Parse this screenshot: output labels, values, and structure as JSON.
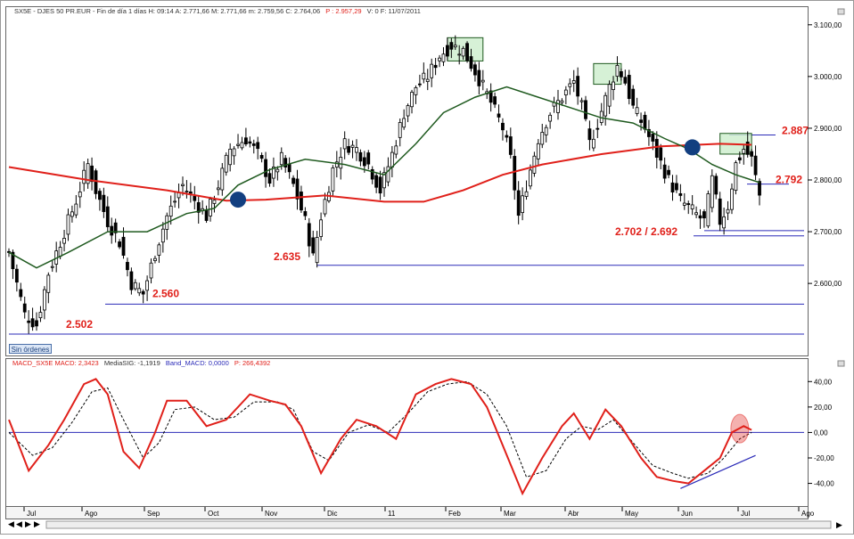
{
  "price_panel": {
    "header": "SX5E - DJES 50 PR.EUR - Fin de día 1 días  H: 09:14  A: 2.771,66  M: 2.771,66  m: 2.759,56  C: 2.764,06",
    "header_p": "P : 2.957,29",
    "header_tail": "V: 0  F: 11/07/2011",
    "orders_button": "Sin órdenes"
  },
  "macd_panel": {
    "header_macd": "MACD_SX5E  MACD: 2,3423",
    "header_sig": "MediaSIG: -1,1919",
    "header_band": "Band_MACD: 0,0000",
    "header_p": "P: 266,4392"
  },
  "colors": {
    "price": "#000000",
    "ma_long": "#e0201a",
    "ma_short": "#1f5a1f",
    "support": "#2b2bb8",
    "annotation": "#e0201a",
    "macd": "#e0201a",
    "signal": "#000000",
    "zero": "#2b2bb8",
    "circle": "#123f80",
    "box_fill": "#cfeecf",
    "box_stroke": "#1f5a1f"
  },
  "chart_data": [
    {
      "type": "candlestick",
      "ylim": [
        2490,
        3110
      ],
      "y_ticks": [
        "3.100,00",
        "3.000,00",
        "2.900,00",
        "2.800,00",
        "2.700,00",
        "2.600,00"
      ],
      "x_labels": [
        "Jul",
        "Ago",
        "Sep",
        "Oct",
        "Nov",
        "Dic",
        "11",
        "Feb",
        "Mar",
        "Abr",
        "May",
        "Jun",
        "Jul",
        "Ago"
      ],
      "price_path": [
        {
          "x": 0,
          "y": 2660
        },
        {
          "x": 4,
          "y": 2540
        },
        {
          "x": 7,
          "y": 2520
        },
        {
          "x": 10,
          "y": 2620
        },
        {
          "x": 14,
          "y": 2700
        },
        {
          "x": 17,
          "y": 2760
        },
        {
          "x": 20,
          "y": 2830
        },
        {
          "x": 22,
          "y": 2780
        },
        {
          "x": 25,
          "y": 2720
        },
        {
          "x": 28,
          "y": 2680
        },
        {
          "x": 31,
          "y": 2600
        },
        {
          "x": 34,
          "y": 2580
        },
        {
          "x": 37,
          "y": 2660
        },
        {
          "x": 40,
          "y": 2730
        },
        {
          "x": 44,
          "y": 2790
        },
        {
          "x": 47,
          "y": 2760
        },
        {
          "x": 50,
          "y": 2730
        },
        {
          "x": 53,
          "y": 2790
        },
        {
          "x": 56,
          "y": 2860
        },
        {
          "x": 60,
          "y": 2880
        },
        {
          "x": 63,
          "y": 2850
        },
        {
          "x": 66,
          "y": 2800
        },
        {
          "x": 69,
          "y": 2840
        },
        {
          "x": 72,
          "y": 2790
        },
        {
          "x": 75,
          "y": 2720
        },
        {
          "x": 77,
          "y": 2650
        },
        {
          "x": 79,
          "y": 2730
        },
        {
          "x": 82,
          "y": 2820
        },
        {
          "x": 85,
          "y": 2870
        },
        {
          "x": 88,
          "y": 2860
        },
        {
          "x": 91,
          "y": 2830
        },
        {
          "x": 94,
          "y": 2780
        },
        {
          "x": 97,
          "y": 2850
        },
        {
          "x": 100,
          "y": 2930
        },
        {
          "x": 103,
          "y": 2980
        },
        {
          "x": 106,
          "y": 3000
        },
        {
          "x": 109,
          "y": 3040
        },
        {
          "x": 112,
          "y": 3060
        },
        {
          "x": 115,
          "y": 3050
        },
        {
          "x": 118,
          "y": 3010
        },
        {
          "x": 120,
          "y": 2980
        },
        {
          "x": 122,
          "y": 2950
        },
        {
          "x": 125,
          "y": 2900
        },
        {
          "x": 127,
          "y": 2840
        },
        {
          "x": 129,
          "y": 2730
        },
        {
          "x": 131,
          "y": 2790
        },
        {
          "x": 134,
          "y": 2880
        },
        {
          "x": 137,
          "y": 2930
        },
        {
          "x": 140,
          "y": 2960
        },
        {
          "x": 143,
          "y": 2990
        },
        {
          "x": 145,
          "y": 2940
        },
        {
          "x": 147,
          "y": 2870
        },
        {
          "x": 149,
          "y": 2910
        },
        {
          "x": 152,
          "y": 2980
        },
        {
          "x": 154,
          "y": 3020
        },
        {
          "x": 156,
          "y": 2990
        },
        {
          "x": 158,
          "y": 2940
        },
        {
          "x": 161,
          "y": 2900
        },
        {
          "x": 164,
          "y": 2850
        },
        {
          "x": 167,
          "y": 2800
        },
        {
          "x": 170,
          "y": 2760
        },
        {
          "x": 173,
          "y": 2740
        },
        {
          "x": 176,
          "y": 2720
        },
        {
          "x": 178,
          "y": 2800
        },
        {
          "x": 180,
          "y": 2720
        },
        {
          "x": 182,
          "y": 2750
        },
        {
          "x": 184,
          "y": 2830
        },
        {
          "x": 186,
          "y": 2860
        },
        {
          "x": 188,
          "y": 2840
        },
        {
          "x": 190,
          "y": 2770
        }
      ],
      "ma_long": [
        {
          "x": 0,
          "y": 2825
        },
        {
          "x": 20,
          "y": 2800
        },
        {
          "x": 40,
          "y": 2780
        },
        {
          "x": 55,
          "y": 2760
        },
        {
          "x": 65,
          "y": 2762
        },
        {
          "x": 80,
          "y": 2770
        },
        {
          "x": 95,
          "y": 2758
        },
        {
          "x": 105,
          "y": 2758
        },
        {
          "x": 115,
          "y": 2780
        },
        {
          "x": 125,
          "y": 2810
        },
        {
          "x": 135,
          "y": 2830
        },
        {
          "x": 150,
          "y": 2850
        },
        {
          "x": 165,
          "y": 2865
        },
        {
          "x": 180,
          "y": 2870
        },
        {
          "x": 188,
          "y": 2868
        }
      ],
      "ma_short": [
        {
          "x": 0,
          "y": 2660
        },
        {
          "x": 7,
          "y": 2630
        },
        {
          "x": 15,
          "y": 2660
        },
        {
          "x": 25,
          "y": 2700
        },
        {
          "x": 35,
          "y": 2700
        },
        {
          "x": 45,
          "y": 2735
        },
        {
          "x": 52,
          "y": 2745
        },
        {
          "x": 58,
          "y": 2790
        },
        {
          "x": 66,
          "y": 2820
        },
        {
          "x": 75,
          "y": 2840
        },
        {
          "x": 85,
          "y": 2830
        },
        {
          "x": 95,
          "y": 2810
        },
        {
          "x": 103,
          "y": 2870
        },
        {
          "x": 110,
          "y": 2930
        },
        {
          "x": 118,
          "y": 2960
        },
        {
          "x": 126,
          "y": 2980
        },
        {
          "x": 134,
          "y": 2960
        },
        {
          "x": 142,
          "y": 2940
        },
        {
          "x": 150,
          "y": 2920
        },
        {
          "x": 158,
          "y": 2910
        },
        {
          "x": 166,
          "y": 2880
        },
        {
          "x": 172,
          "y": 2860
        },
        {
          "x": 178,
          "y": 2830
        },
        {
          "x": 184,
          "y": 2810
        },
        {
          "x": 190,
          "y": 2795
        }
      ],
      "support_levels": [
        {
          "value": 2887,
          "label": "2.887"
        },
        {
          "value": 2792,
          "label": "2.792"
        },
        {
          "value": 2702,
          "label": "2.702 / 2.692"
        },
        {
          "value": 2692,
          "label": ""
        },
        {
          "value": 2635,
          "label": "2.635"
        },
        {
          "value": 2560,
          "label": "2.560"
        },
        {
          "value": 2502,
          "label": "2.502"
        }
      ],
      "crossover_points": [
        {
          "x": 58,
          "y": 2762
        },
        {
          "x": 173,
          "y": 2863
        }
      ],
      "highlight_boxes": [
        {
          "x_start": 111,
          "x_end": 120,
          "y_low": 3030,
          "y_high": 3075
        },
        {
          "x_start": 148,
          "x_end": 155,
          "y_low": 2985,
          "y_high": 3025
        },
        {
          "x_start": 180,
          "x_end": 188,
          "y_low": 2850,
          "y_high": 2890
        }
      ]
    },
    {
      "type": "line",
      "ylim": [
        -55,
        50
      ],
      "y_ticks": [
        "40,00",
        "20,00",
        "0,00",
        "-20,00",
        "-40,00"
      ],
      "series": [
        {
          "name": "MACD",
          "values": [
            {
              "x": 0,
              "y": 10
            },
            {
              "x": 5,
              "y": -30
            },
            {
              "x": 10,
              "y": -10
            },
            {
              "x": 14,
              "y": 10
            },
            {
              "x": 19,
              "y": 38
            },
            {
              "x": 22,
              "y": 42
            },
            {
              "x": 25,
              "y": 30
            },
            {
              "x": 29,
              "y": -15
            },
            {
              "x": 33,
              "y": -28
            },
            {
              "x": 37,
              "y": 0
            },
            {
              "x": 40,
              "y": 25
            },
            {
              "x": 45,
              "y": 25
            },
            {
              "x": 50,
              "y": 5
            },
            {
              "x": 55,
              "y": 10
            },
            {
              "x": 61,
              "y": 30
            },
            {
              "x": 66,
              "y": 25
            },
            {
              "x": 70,
              "y": 22
            },
            {
              "x": 74,
              "y": 5
            },
            {
              "x": 79,
              "y": -32
            },
            {
              "x": 84,
              "y": -5
            },
            {
              "x": 88,
              "y": 10
            },
            {
              "x": 93,
              "y": 5
            },
            {
              "x": 98,
              "y": -5
            },
            {
              "x": 103,
              "y": 30
            },
            {
              "x": 108,
              "y": 38
            },
            {
              "x": 112,
              "y": 42
            },
            {
              "x": 117,
              "y": 38
            },
            {
              "x": 121,
              "y": 20
            },
            {
              "x": 125,
              "y": -10
            },
            {
              "x": 130,
              "y": -48
            },
            {
              "x": 135,
              "y": -20
            },
            {
              "x": 140,
              "y": 5
            },
            {
              "x": 143,
              "y": 15
            },
            {
              "x": 147,
              "y": -5
            },
            {
              "x": 151,
              "y": 18
            },
            {
              "x": 155,
              "y": 5
            },
            {
              "x": 160,
              "y": -20
            },
            {
              "x": 164,
              "y": -35
            },
            {
              "x": 168,
              "y": -38
            },
            {
              "x": 172,
              "y": -40
            },
            {
              "x": 176,
              "y": -30
            },
            {
              "x": 180,
              "y": -20
            },
            {
              "x": 183,
              "y": 0
            },
            {
              "x": 186,
              "y": 5
            },
            {
              "x": 188,
              "y": 2
            }
          ]
        },
        {
          "name": "MediaSIG",
          "values": [
            {
              "x": 0,
              "y": 0
            },
            {
              "x": 6,
              "y": -18
            },
            {
              "x": 11,
              "y": -12
            },
            {
              "x": 16,
              "y": 8
            },
            {
              "x": 21,
              "y": 32
            },
            {
              "x": 25,
              "y": 35
            },
            {
              "x": 29,
              "y": 10
            },
            {
              "x": 34,
              "y": -20
            },
            {
              "x": 38,
              "y": -8
            },
            {
              "x": 42,
              "y": 18
            },
            {
              "x": 47,
              "y": 20
            },
            {
              "x": 52,
              "y": 10
            },
            {
              "x": 57,
              "y": 12
            },
            {
              "x": 62,
              "y": 24
            },
            {
              "x": 68,
              "y": 24
            },
            {
              "x": 72,
              "y": 18
            },
            {
              "x": 77,
              "y": -15
            },
            {
              "x": 81,
              "y": -22
            },
            {
              "x": 86,
              "y": 0
            },
            {
              "x": 91,
              "y": 6
            },
            {
              "x": 96,
              "y": 0
            },
            {
              "x": 101,
              "y": 15
            },
            {
              "x": 106,
              "y": 32
            },
            {
              "x": 111,
              "y": 38
            },
            {
              "x": 116,
              "y": 40
            },
            {
              "x": 121,
              "y": 30
            },
            {
              "x": 126,
              "y": 5
            },
            {
              "x": 131,
              "y": -35
            },
            {
              "x": 136,
              "y": -30
            },
            {
              "x": 141,
              "y": -5
            },
            {
              "x": 145,
              "y": 5
            },
            {
              "x": 149,
              "y": 2
            },
            {
              "x": 153,
              "y": 10
            },
            {
              "x": 158,
              "y": -8
            },
            {
              "x": 163,
              "y": -26
            },
            {
              "x": 168,
              "y": -32
            },
            {
              "x": 172,
              "y": -36
            },
            {
              "x": 177,
              "y": -32
            },
            {
              "x": 181,
              "y": -20
            },
            {
              "x": 185,
              "y": -5
            },
            {
              "x": 188,
              "y": 0
            }
          ]
        }
      ],
      "zero_line": 0,
      "trendline": [
        {
          "x": 170,
          "y": -44
        },
        {
          "x": 189,
          "y": -18
        }
      ],
      "highlight_circle": {
        "x": 185,
        "y": 3
      }
    }
  ]
}
